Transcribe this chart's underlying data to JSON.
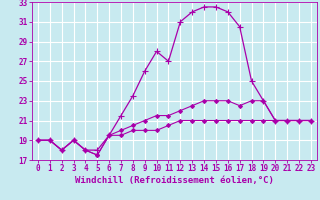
{
  "xlabel": "Windchill (Refroidissement éolien,°C)",
  "ylabel": "",
  "background_color": "#c8eaf0",
  "grid_color": "#ffffff",
  "line_color": "#aa00aa",
  "xlim": [
    -0.5,
    23.5
  ],
  "ylim": [
    17,
    33
  ],
  "yticks": [
    17,
    19,
    21,
    23,
    25,
    27,
    29,
    31,
    33
  ],
  "xticks": [
    0,
    1,
    2,
    3,
    4,
    5,
    6,
    7,
    8,
    9,
    10,
    11,
    12,
    13,
    14,
    15,
    16,
    17,
    18,
    19,
    20,
    21,
    22,
    23
  ],
  "series": [
    {
      "x": [
        0,
        1,
        2,
        3,
        4,
        5,
        6,
        7,
        8,
        9,
        10,
        11,
        12,
        13,
        14,
        15,
        16,
        17,
        18,
        19,
        20,
        21,
        22,
        23
      ],
      "y": [
        19,
        19,
        18,
        19,
        18,
        18,
        19.5,
        21.5,
        23.5,
        26,
        28,
        27,
        31,
        32,
        32.5,
        32.5,
        32,
        30.5,
        25,
        23,
        21,
        21,
        21,
        21
      ],
      "marker": "+",
      "markersize": 4,
      "linewidth": 0.9
    },
    {
      "x": [
        0,
        1,
        2,
        3,
        4,
        5,
        6,
        7,
        8,
        9,
        10,
        11,
        12,
        13,
        14,
        15,
        16,
        17,
        18,
        19,
        20,
        21,
        22,
        23
      ],
      "y": [
        19,
        19,
        18,
        19,
        18,
        17.5,
        19.5,
        20,
        20.5,
        21,
        21.5,
        21.5,
        22,
        22.5,
        23,
        23,
        23,
        22.5,
        23,
        23,
        21,
        21,
        21,
        21
      ],
      "marker": "D",
      "markersize": 2,
      "linewidth": 0.8
    },
    {
      "x": [
        0,
        1,
        2,
        3,
        4,
        5,
        6,
        7,
        8,
        9,
        10,
        11,
        12,
        13,
        14,
        15,
        16,
        17,
        18,
        19,
        20,
        21,
        22,
        23
      ],
      "y": [
        19,
        19,
        18,
        19,
        18,
        17.5,
        19.5,
        19.5,
        20,
        20,
        20,
        20.5,
        21,
        21,
        21,
        21,
        21,
        21,
        21,
        21,
        21,
        21,
        21,
        21
      ],
      "marker": "D",
      "markersize": 2,
      "linewidth": 0.8
    }
  ],
  "tick_fontsize": 5.5,
  "label_fontsize": 6.5
}
